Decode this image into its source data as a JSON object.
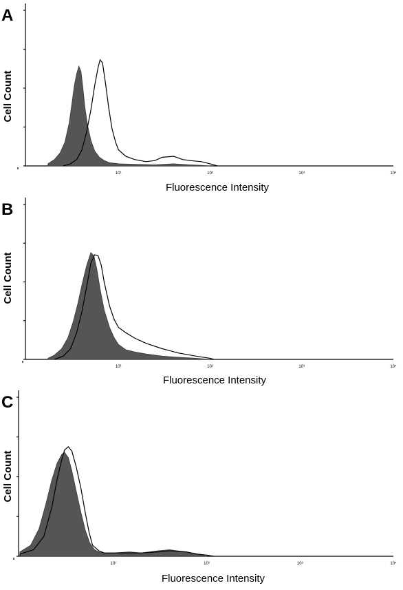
{
  "chart_data": [
    {
      "type": "area",
      "panel_label": "A",
      "xlabel": "Fluorescence Intensity",
      "ylabel": "Cell Count",
      "x_scale": "log",
      "xlim": [
        1,
        10000
      ],
      "x_tick_labels": [
        "10¹",
        "10²",
        "10³",
        "10⁴"
      ],
      "series": [
        {
          "role": "filled",
          "color": "#555555",
          "x": [
            1.7,
            2.0,
            2.3,
            2.6,
            2.9,
            3.1,
            3.3,
            3.5,
            3.7,
            3.9,
            4.1,
            4.3,
            4.6,
            5.0,
            5.5,
            6.2,
            7.0,
            8.0,
            10,
            15,
            25,
            40,
            60,
            80,
            100
          ],
          "y": [
            0.02,
            0.06,
            0.12,
            0.22,
            0.4,
            0.58,
            0.75,
            0.86,
            0.93,
            0.88,
            0.72,
            0.55,
            0.38,
            0.24,
            0.14,
            0.08,
            0.05,
            0.03,
            0.02,
            0.015,
            0.01,
            0.02,
            0.01,
            0.005,
            0.0
          ]
        },
        {
          "role": "outline",
          "color": "#000000",
          "x": [
            2.5,
            3.0,
            3.5,
            4.0,
            4.5,
            5.0,
            5.5,
            6.0,
            6.3,
            6.7,
            7.2,
            7.8,
            8.5,
            9.3,
            10,
            12,
            15,
            20,
            25,
            30,
            40,
            50,
            60,
            80,
            100,
            120
          ],
          "y": [
            0.0,
            0.02,
            0.06,
            0.15,
            0.32,
            0.52,
            0.75,
            0.92,
            0.99,
            0.96,
            0.78,
            0.55,
            0.35,
            0.22,
            0.15,
            0.09,
            0.06,
            0.04,
            0.05,
            0.08,
            0.09,
            0.06,
            0.05,
            0.04,
            0.02,
            0.0
          ]
        }
      ]
    },
    {
      "type": "area",
      "panel_label": "B",
      "xlabel": "Fluorescence Intensity",
      "ylabel": "Cell Count",
      "x_scale": "log",
      "xlim": [
        1,
        10000
      ],
      "x_tick_labels": [
        "10¹",
        "10²",
        "10³",
        "10⁴"
      ],
      "series": [
        {
          "role": "filled",
          "color": "#555555",
          "x": [
            1.7,
            2.0,
            2.4,
            2.8,
            3.2,
            3.6,
            4.0,
            4.5,
            5.0,
            5.4,
            5.8,
            6.3,
            7.0,
            8.0,
            9.0,
            10,
            12,
            15,
            20,
            30,
            45,
            70,
            100
          ],
          "y": [
            0.01,
            0.04,
            0.1,
            0.2,
            0.35,
            0.52,
            0.7,
            0.88,
            1.0,
            0.97,
            0.85,
            0.66,
            0.46,
            0.3,
            0.2,
            0.14,
            0.09,
            0.07,
            0.05,
            0.03,
            0.02,
            0.01,
            0.0
          ]
        },
        {
          "role": "outline",
          "color": "#000000",
          "x": [
            2.0,
            2.5,
            3.0,
            3.5,
            4.0,
            4.5,
            5.0,
            5.5,
            6.0,
            6.5,
            7.0,
            8.0,
            9.0,
            10,
            12,
            15,
            20,
            30,
            45,
            70,
            100,
            110
          ],
          "y": [
            0.0,
            0.03,
            0.1,
            0.25,
            0.45,
            0.68,
            0.9,
            0.98,
            0.97,
            0.88,
            0.72,
            0.5,
            0.37,
            0.3,
            0.25,
            0.2,
            0.15,
            0.1,
            0.06,
            0.03,
            0.01,
            0.0
          ]
        }
      ]
    },
    {
      "type": "area",
      "panel_label": "C",
      "xlabel": "Fluorescence Intensity",
      "ylabel": "Cell Count",
      "x_scale": "log",
      "xlim": [
        1,
        10000
      ],
      "x_tick_labels": [
        "10¹",
        "10²",
        "10³",
        "10⁴"
      ],
      "series": [
        {
          "role": "filled",
          "color": "#555555",
          "x": [
            1.0,
            1.3,
            1.6,
            1.9,
            2.2,
            2.5,
            2.8,
            3.0,
            3.3,
            3.6,
            4.0,
            4.5,
            5.0,
            5.6,
            6.3,
            7.0,
            8.0,
            10,
            15,
            20,
            30,
            40,
            60,
            80,
            100
          ],
          "y": [
            0.04,
            0.1,
            0.25,
            0.48,
            0.7,
            0.85,
            0.93,
            0.95,
            0.9,
            0.78,
            0.6,
            0.4,
            0.24,
            0.12,
            0.06,
            0.04,
            0.03,
            0.03,
            0.04,
            0.03,
            0.05,
            0.06,
            0.04,
            0.02,
            0.0
          ]
        },
        {
          "role": "outline",
          "color": "#000000",
          "x": [
            1.0,
            1.4,
            1.8,
            2.2,
            2.5,
            2.8,
            3.0,
            3.3,
            3.6,
            4.0,
            4.5,
            5.0,
            5.5,
            6.0,
            7.0,
            8.0,
            10,
            15,
            20,
            30,
            40,
            60,
            80,
            100,
            120
          ],
          "y": [
            0.02,
            0.06,
            0.18,
            0.45,
            0.7,
            0.88,
            0.97,
            1.0,
            0.96,
            0.82,
            0.62,
            0.4,
            0.22,
            0.1,
            0.05,
            0.03,
            0.03,
            0.03,
            0.03,
            0.04,
            0.05,
            0.04,
            0.02,
            0.01,
            0.0
          ]
        }
      ]
    }
  ]
}
